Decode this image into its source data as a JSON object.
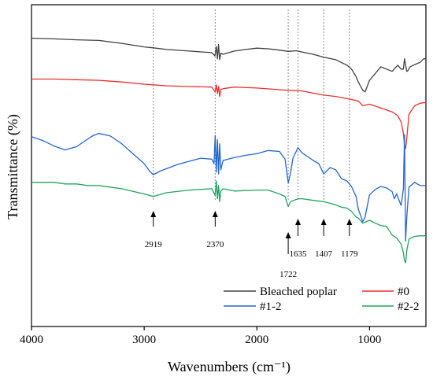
{
  "chart_data": {
    "type": "line",
    "title": "",
    "xlabel": "Wavenumbers (cm⁻¹)",
    "ylabel": "Transmittance (%)",
    "xlim": [
      4000,
      500
    ],
    "x_reversed": true,
    "ylim": [
      0,
      100
    ],
    "y_ticks_shown": false,
    "x_ticks": [
      4000,
      3000,
      2000,
      1000
    ],
    "x_tick_labels": [
      "4000",
      "3000",
      "2000",
      "1000"
    ],
    "grid": false,
    "legend_position": "bottom-right",
    "reference_lines": [
      {
        "x": 2919,
        "label": "2919",
        "label_pos": "below"
      },
      {
        "x": 2370,
        "label": "2370",
        "label_pos": "below"
      },
      {
        "x": 1722,
        "label": "1722",
        "label_pos": "below-far"
      },
      {
        "x": 1635,
        "label": "1635",
        "label_pos": "below-mid"
      },
      {
        "x": 1407,
        "label": "1407",
        "label_pos": "below-mid"
      },
      {
        "x": 1179,
        "label": "1179",
        "label_pos": "below-mid"
      }
    ],
    "series": [
      {
        "name": "Bleached poplar",
        "color": "#404040",
        "points": [
          [
            4000,
            89.6
          ],
          [
            3800,
            89.4
          ],
          [
            3600,
            89.1
          ],
          [
            3400,
            88.9
          ],
          [
            3200,
            88.0
          ],
          [
            3000,
            86.9
          ],
          [
            2919,
            86.6
          ],
          [
            2800,
            86.1
          ],
          [
            2600,
            85.6
          ],
          [
            2400,
            85.1
          ],
          [
            2372,
            84.1
          ],
          [
            2360,
            87.0
          ],
          [
            2350,
            83.2
          ],
          [
            2340,
            87.6
          ],
          [
            2330,
            82.9
          ],
          [
            2320,
            84.9
          ],
          [
            2300,
            84.6
          ],
          [
            2200,
            85.6
          ],
          [
            2100,
            86.1
          ],
          [
            2000,
            86.5
          ],
          [
            1900,
            86.3
          ],
          [
            1800,
            85.9
          ],
          [
            1722,
            85.5
          ],
          [
            1650,
            85.7
          ],
          [
            1600,
            85.3
          ],
          [
            1500,
            84.6
          ],
          [
            1407,
            83.7
          ],
          [
            1300,
            82.9
          ],
          [
            1200,
            81.2
          ],
          [
            1160,
            80.0
          ],
          [
            1120,
            77.6
          ],
          [
            1100,
            76.0
          ],
          [
            1060,
            73.4
          ],
          [
            1040,
            72.9
          ],
          [
            1000,
            76.5
          ],
          [
            950,
            78.6
          ],
          [
            900,
            80.7
          ],
          [
            850,
            80.0
          ],
          [
            800,
            79.3
          ],
          [
            750,
            81.2
          ],
          [
            720,
            80.0
          ],
          [
            700,
            80.0
          ],
          [
            690,
            83.2
          ],
          [
            670,
            79.3
          ],
          [
            660,
            79.5
          ],
          [
            640,
            80.7
          ],
          [
            600,
            81.4
          ],
          [
            550,
            82.1
          ],
          [
            520,
            83.2
          ],
          [
            500,
            83.2
          ]
        ]
      },
      {
        "name": "#0",
        "color": "#e8302e",
        "points": [
          [
            4000,
            76.9
          ],
          [
            3800,
            76.9
          ],
          [
            3600,
            76.7
          ],
          [
            3400,
            76.5
          ],
          [
            3200,
            76.0
          ],
          [
            3000,
            75.3
          ],
          [
            2919,
            75.1
          ],
          [
            2800,
            74.8
          ],
          [
            2600,
            74.6
          ],
          [
            2400,
            74.4
          ],
          [
            2370,
            72.9
          ],
          [
            2360,
            75.1
          ],
          [
            2350,
            72.4
          ],
          [
            2340,
            74.6
          ],
          [
            2330,
            71.5
          ],
          [
            2320,
            73.6
          ],
          [
            2300,
            73.9
          ],
          [
            2200,
            74.4
          ],
          [
            2000,
            74.1
          ],
          [
            1800,
            73.6
          ],
          [
            1722,
            73.4
          ],
          [
            1600,
            73.2
          ],
          [
            1407,
            71.9
          ],
          [
            1300,
            71.5
          ],
          [
            1200,
            70.8
          ],
          [
            1100,
            70.1
          ],
          [
            1060,
            68.6
          ],
          [
            1000,
            69.1
          ],
          [
            900,
            67.9
          ],
          [
            800,
            66.7
          ],
          [
            750,
            65.5
          ],
          [
            720,
            63.6
          ],
          [
            700,
            60.0
          ],
          [
            690,
            56.4
          ],
          [
            680,
            55.3
          ],
          [
            670,
            58.6
          ],
          [
            650,
            66.0
          ],
          [
            600,
            68.6
          ],
          [
            550,
            69.4
          ],
          [
            500,
            69.6
          ]
        ]
      },
      {
        "name": "#1-2",
        "color": "#2366cc",
        "points": [
          [
            4000,
            59.0
          ],
          [
            3900,
            57.8
          ],
          [
            3800,
            56.1
          ],
          [
            3700,
            54.9
          ],
          [
            3600,
            55.9
          ],
          [
            3500,
            58.3
          ],
          [
            3450,
            59.4
          ],
          [
            3400,
            60.0
          ],
          [
            3300,
            59.2
          ],
          [
            3200,
            56.8
          ],
          [
            3100,
            53.7
          ],
          [
            3000,
            50.6
          ],
          [
            2950,
            48.2
          ],
          [
            2919,
            47.2
          ],
          [
            2850,
            48.4
          ],
          [
            2700,
            50.4
          ],
          [
            2500,
            52.3
          ],
          [
            2400,
            52.0
          ],
          [
            2380,
            50.6
          ],
          [
            2370,
            59.4
          ],
          [
            2360,
            48.0
          ],
          [
            2350,
            58.1
          ],
          [
            2340,
            47.4
          ],
          [
            2330,
            56.8
          ],
          [
            2320,
            48.7
          ],
          [
            2300,
            51.6
          ],
          [
            2200,
            52.5
          ],
          [
            2100,
            53.2
          ],
          [
            2000,
            53.7
          ],
          [
            1900,
            54.7
          ],
          [
            1800,
            54.4
          ],
          [
            1750,
            52.0
          ],
          [
            1722,
            44.6
          ],
          [
            1700,
            47.9
          ],
          [
            1680,
            52.3
          ],
          [
            1635,
            55.6
          ],
          [
            1600,
            54.0
          ],
          [
            1550,
            52.8
          ],
          [
            1500,
            51.6
          ],
          [
            1450,
            50.6
          ],
          [
            1407,
            47.4
          ],
          [
            1350,
            49.4
          ],
          [
            1300,
            48.7
          ],
          [
            1250,
            46.0
          ],
          [
            1200,
            45.2
          ],
          [
            1160,
            43.5
          ],
          [
            1120,
            40.4
          ],
          [
            1100,
            36.5
          ],
          [
            1060,
            32.6
          ],
          [
            1040,
            34.0
          ],
          [
            1000,
            40.9
          ],
          [
            950,
            42.6
          ],
          [
            900,
            43.5
          ],
          [
            850,
            43.1
          ],
          [
            800,
            41.9
          ],
          [
            780,
            39.7
          ],
          [
            760,
            41.2
          ],
          [
            720,
            37.6
          ],
          [
            700,
            42.8
          ],
          [
            690,
            59.6
          ],
          [
            680,
            26.6
          ],
          [
            670,
            34.0
          ],
          [
            650,
            43.3
          ],
          [
            600,
            44.8
          ],
          [
            550,
            43.8
          ],
          [
            500,
            43.8
          ]
        ]
      },
      {
        "name": "#2-2",
        "color": "#21a35e",
        "points": [
          [
            4000,
            44.8
          ],
          [
            3800,
            44.8
          ],
          [
            3700,
            44.3
          ],
          [
            3600,
            44.3
          ],
          [
            3500,
            43.8
          ],
          [
            3400,
            43.8
          ],
          [
            3200,
            42.8
          ],
          [
            3000,
            41.2
          ],
          [
            2919,
            40.4
          ],
          [
            2800,
            41.6
          ],
          [
            2600,
            42.4
          ],
          [
            2400,
            42.8
          ],
          [
            2370,
            40.7
          ],
          [
            2360,
            45.2
          ],
          [
            2350,
            39.7
          ],
          [
            2340,
            43.8
          ],
          [
            2330,
            38.8
          ],
          [
            2320,
            42.1
          ],
          [
            2300,
            42.8
          ],
          [
            2200,
            42.1
          ],
          [
            2000,
            42.4
          ],
          [
            1900,
            42.4
          ],
          [
            1800,
            41.2
          ],
          [
            1750,
            40.4
          ],
          [
            1722,
            37.3
          ],
          [
            1700,
            38.8
          ],
          [
            1635,
            39.7
          ],
          [
            1600,
            39.7
          ],
          [
            1500,
            39.2
          ],
          [
            1407,
            38.8
          ],
          [
            1300,
            37.8
          ],
          [
            1250,
            37.1
          ],
          [
            1200,
            36.8
          ],
          [
            1160,
            35.8
          ],
          [
            1120,
            34.0
          ],
          [
            1100,
            33.7
          ],
          [
            1060,
            32.1
          ],
          [
            1000,
            33.0
          ],
          [
            950,
            32.1
          ],
          [
            900,
            31.4
          ],
          [
            850,
            31.1
          ],
          [
            800,
            28.4
          ],
          [
            760,
            27.5
          ],
          [
            720,
            25.6
          ],
          [
            700,
            22.9
          ],
          [
            690,
            20.5
          ],
          [
            680,
            19.8
          ],
          [
            670,
            23.6
          ],
          [
            650,
            27.2
          ],
          [
            600,
            28.0
          ],
          [
            550,
            28.2
          ],
          [
            500,
            28.2
          ]
        ]
      }
    ]
  }
}
